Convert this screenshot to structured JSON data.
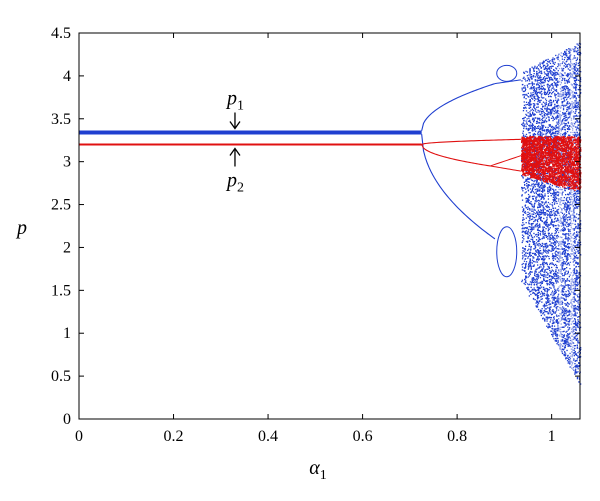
{
  "chart_data": {
    "type": "scatter",
    "title": "",
    "xlabel": "α",
    "xlabel_sub": "1",
    "ylabel": "p",
    "xlim": [
      0,
      1.06
    ],
    "ylim": [
      0,
      4.5
    ],
    "xticks": [
      0,
      0.2,
      0.4,
      0.6,
      0.8,
      1
    ],
    "xtick_labels": [
      "0",
      "0.2",
      "0.4",
      "0.6",
      "0.8",
      "1"
    ],
    "yticks": [
      0,
      0.5,
      1,
      1.5,
      2,
      2.5,
      3,
      3.5,
      4,
      4.5
    ],
    "ytick_labels": [
      "0",
      "0.5",
      "1",
      "1.5",
      "2",
      "2.5",
      "3",
      "3.5",
      "4",
      "4.5"
    ],
    "grid": false,
    "series": [
      {
        "name": "p1",
        "color": "#1f3fd0",
        "fixed_value": 3.34,
        "bifurcations": [
          0.725,
          0.88,
          0.935
        ],
        "chaos_range": [
          0.935,
          1.06
        ],
        "chaos_envelope": {
          "at_0.935": [
            1.6,
            4.05
          ],
          "at_1.06": [
            0.4,
            4.4
          ]
        }
      },
      {
        "name": "p2",
        "color": "#e01010",
        "fixed_value": 3.2,
        "bifurcations": [
          0.725,
          0.87,
          0.92
        ],
        "chaos_range": [
          0.935,
          1.06
        ],
        "chaos_envelope": {
          "at_0.935": [
            2.85,
            3.3
          ],
          "at_1.06": [
            2.65,
            3.3
          ]
        }
      }
    ],
    "annotations": [
      {
        "base": "p",
        "sub": "1",
        "x": 0.33,
        "y": 3.34,
        "arrow": "down"
      },
      {
        "base": "p",
        "sub": "2",
        "x": 0.33,
        "y": 3.2,
        "arrow": "up"
      }
    ]
  }
}
